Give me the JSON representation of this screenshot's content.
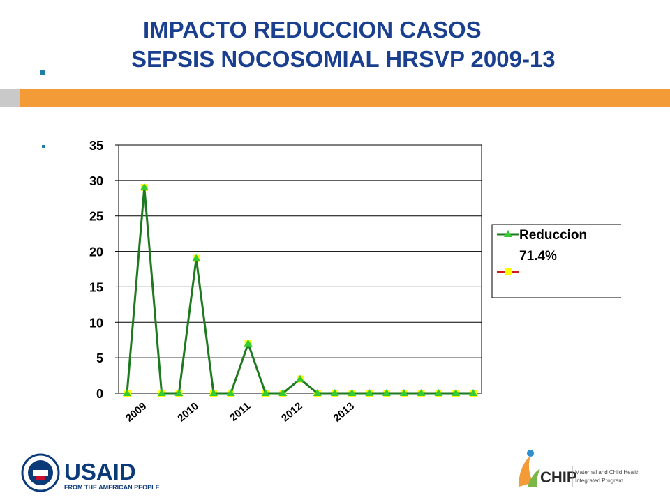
{
  "slide": {
    "title_line1": "IMPACTO REDUCCION CASOS",
    "title_line2": "SEPSIS NOCOSOMIAL   HRSVP  2009-13"
  },
  "colors": {
    "title": "#1a3f8f",
    "band_orange": "#f39b37",
    "band_grey": "#c9c9c9",
    "series_reduccion": "#1e7a1e",
    "series_reduccion_marker": "#33cc33",
    "series_2_line": "#d11a1a",
    "series_2_marker": "#ffff00"
  },
  "chart_data": {
    "type": "line",
    "title": "",
    "xlabel": "",
    "ylabel": "",
    "ylim": [
      0,
      35
    ],
    "yticks": [
      0,
      5,
      10,
      15,
      20,
      25,
      30,
      35
    ],
    "grid": true,
    "legend_position": "right",
    "x_tick_labels": [
      "2009",
      "2010",
      "2011",
      "2012",
      "2013"
    ],
    "x_tick_label_indices": [
      1,
      4,
      7,
      10,
      13
    ],
    "x": [
      1,
      2,
      3,
      4,
      5,
      6,
      7,
      8,
      9,
      10,
      11,
      12,
      13,
      14,
      15,
      16,
      17,
      18,
      19,
      20,
      21
    ],
    "series": [
      {
        "name": "Reduccion 71.4%",
        "legend_line1": "Reduccion",
        "legend_line2": "71.4%",
        "values": [
          0,
          29,
          0,
          0,
          19,
          0,
          0,
          7,
          0,
          0,
          2,
          0,
          0,
          0,
          0,
          0,
          0,
          0,
          0,
          0,
          0
        ]
      },
      {
        "name": "",
        "values": [
          0,
          29,
          0,
          0,
          19,
          0,
          0,
          7,
          0,
          0,
          2,
          0,
          0,
          0,
          0,
          0,
          0,
          0,
          0,
          0,
          0
        ]
      }
    ]
  },
  "logos": {
    "usaid_word": "USAID",
    "usaid_tagline": "FROM THE AMERICAN PEOPLE",
    "chip_word": "CHIP",
    "chip_line1": "Maternal and Child Health",
    "chip_line2": "Integrated Program"
  }
}
